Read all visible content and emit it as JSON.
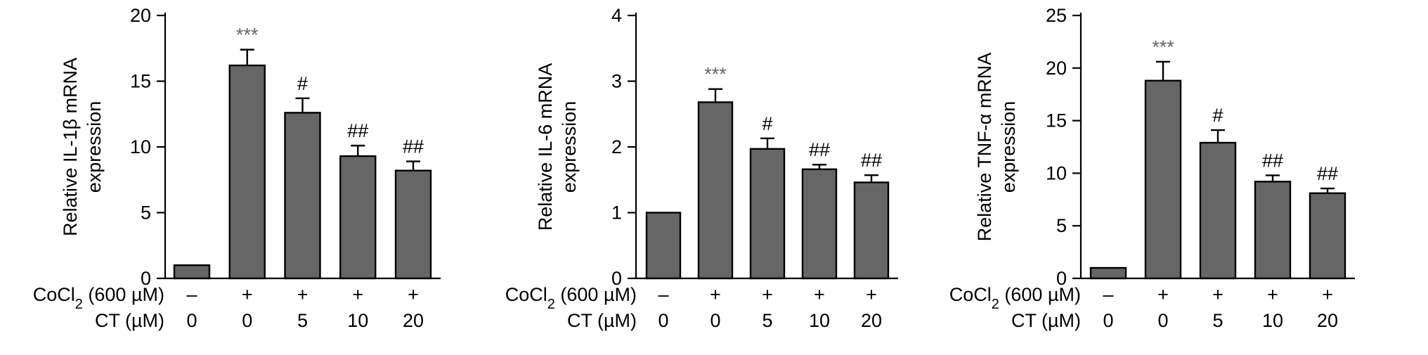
{
  "chart_data": [
    {
      "type": "bar",
      "ylabel_lines": [
        "Relative IL-1β mRNA",
        "expression"
      ],
      "ylim": [
        0,
        20
      ],
      "yticks": [
        0,
        5,
        10,
        15,
        20
      ],
      "values": [
        1.0,
        16.2,
        12.6,
        9.3,
        8.2
      ],
      "errors": [
        0.0,
        1.2,
        1.1,
        0.8,
        0.7
      ],
      "annotations": [
        "",
        "***",
        "#",
        "##",
        "##"
      ],
      "cocl2_label": "CoCl",
      "cocl2_sub": "2",
      "cocl2_unit": " (600 µM)",
      "cocl2": [
        "–",
        "+",
        "+",
        "+",
        "+"
      ],
      "ct_label": "CT (µM)",
      "ct": [
        "0",
        "0",
        "5",
        "10",
        "20"
      ]
    },
    {
      "type": "bar",
      "ylabel_lines": [
        "Relative IL-6 mRNA",
        "expression"
      ],
      "ylim": [
        0,
        4
      ],
      "yticks": [
        0,
        1,
        2,
        3,
        4
      ],
      "values": [
        1.0,
        2.68,
        1.97,
        1.66,
        1.46
      ],
      "errors": [
        0.0,
        0.2,
        0.16,
        0.07,
        0.11
      ],
      "annotations": [
        "",
        "***",
        "#",
        "##",
        "##"
      ],
      "cocl2_label": "CoCl",
      "cocl2_sub": "2",
      "cocl2_unit": " (600 µM)",
      "cocl2": [
        "–",
        "+",
        "+",
        "+",
        "+"
      ],
      "ct_label": "CT (µM)",
      "ct": [
        "0",
        "0",
        "5",
        "10",
        "20"
      ]
    },
    {
      "type": "bar",
      "ylabel_lines": [
        "Relative TNF-α mRNA",
        "expression"
      ],
      "ylim": [
        0,
        25
      ],
      "yticks": [
        0,
        5,
        10,
        15,
        20,
        25
      ],
      "values": [
        1.0,
        18.8,
        12.9,
        9.2,
        8.1
      ],
      "errors": [
        0.0,
        1.8,
        1.2,
        0.6,
        0.45
      ],
      "annotations": [
        "",
        "***",
        "#",
        "##",
        "##"
      ],
      "cocl2_label": "CoCl",
      "cocl2_sub": "2",
      "cocl2_unit": " (600 µM)",
      "cocl2": [
        "–",
        "+",
        "+",
        "+",
        "+"
      ],
      "ct_label": "CT (µM)",
      "ct": [
        "0",
        "0",
        "5",
        "10",
        "20"
      ]
    }
  ]
}
